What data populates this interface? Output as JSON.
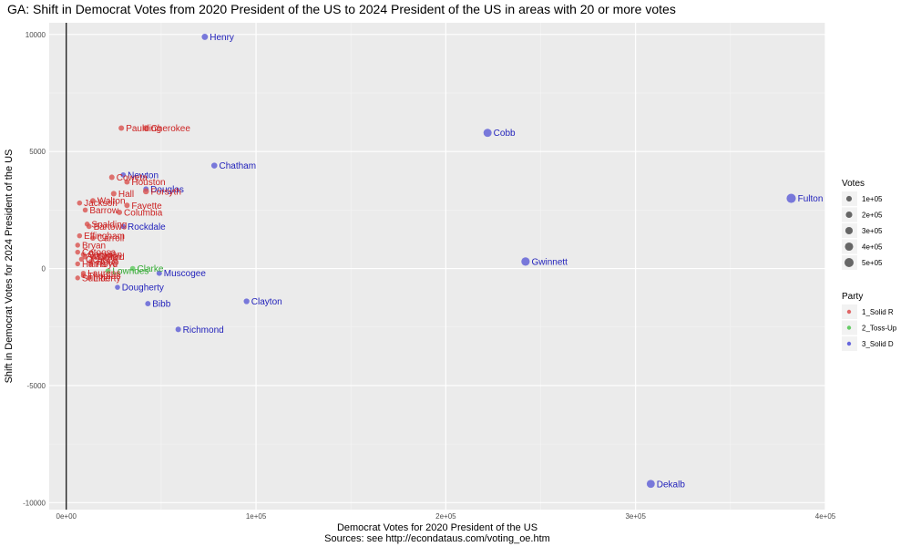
{
  "chart_data": {
    "type": "scatter",
    "title": "GA: Shift in Democrat Votes from 2020 President of the US to 2024 President of the US in areas with 20 or more votes",
    "xlabel": "Democrat Votes for 2020 President of the US",
    "ylabel": "Shift in Democrat Votes for 2024 President of the US",
    "caption": "Sources: see http://econdataus.com/voting_oe.htm",
    "xlim": [
      -9000,
      400000
    ],
    "ylim": [
      -10300,
      10500
    ],
    "x_ticks": [
      0,
      100000,
      200000,
      300000,
      400000
    ],
    "x_tick_labels": [
      "0e+00",
      "1e+05",
      "2e+05",
      "3e+05",
      "4e+05"
    ],
    "y_ticks": [
      -10000,
      -5000,
      0,
      5000,
      10000
    ],
    "y_tick_labels": [
      "-10000",
      "-5000",
      "0",
      "5000",
      "10000"
    ],
    "grid": true,
    "vline_x": 0,
    "legend_placement": "right",
    "legend": {
      "size_title": "Votes",
      "size_items": [
        {
          "label": "1e+05",
          "value": 100000
        },
        {
          "label": "2e+05",
          "value": 200000
        },
        {
          "label": "3e+05",
          "value": 300000
        },
        {
          "label": "4e+05",
          "value": 400000
        },
        {
          "label": "5e+05",
          "value": 500000
        }
      ],
      "party_title": "Party",
      "party_items": [
        {
          "label": "1_Solid R",
          "color": "#e06666"
        },
        {
          "label": "2_Toss-Up",
          "color": "#66cc66"
        },
        {
          "label": "3_Solid D",
          "color": "#6666dd"
        }
      ]
    },
    "colors": {
      "1_Solid R": "#d9534f",
      "2_Toss-Up": "#5cc85c",
      "3_Solid D": "#5b5bd6",
      "label_r": "#cc2222",
      "label_t": "#33aa33",
      "label_d": "#2222bb"
    },
    "series": [
      {
        "name": "3_Solid D",
        "points": [
          {
            "label": "Henry",
            "x": 73000,
            "y": 9900,
            "votes": 170000
          },
          {
            "label": "Cobb",
            "x": 222000,
            "y": 5800,
            "votes": 390000
          },
          {
            "label": "Chatham",
            "x": 78000,
            "y": 4400,
            "votes": 140000
          },
          {
            "label": "Fulton",
            "x": 382000,
            "y": 3000,
            "votes": 520000
          },
          {
            "label": "Newton",
            "x": 30000,
            "y": 4000,
            "votes": 55000
          },
          {
            "label": "Douglas",
            "x": 42000,
            "y": 3400,
            "votes": 70000
          },
          {
            "label": "Rockdale",
            "x": 30000,
            "y": 1800,
            "votes": 45000
          },
          {
            "label": "Gwinnett",
            "x": 242000,
            "y": 300,
            "votes": 420000
          },
          {
            "label": "Muscogee",
            "x": 49000,
            "y": -200,
            "votes": 75000
          },
          {
            "label": "Clayton",
            "x": 95000,
            "y": -1400,
            "votes": 115000
          },
          {
            "label": "Bibb",
            "x": 43000,
            "y": -1500,
            "votes": 70000
          },
          {
            "label": "Richmond",
            "x": 59000,
            "y": -2600,
            "votes": 90000
          },
          {
            "label": "Dekalb",
            "x": 308000,
            "y": -9200,
            "votes": 380000
          },
          {
            "label": "Dougherty",
            "x": 27000,
            "y": -800,
            "votes": 40000
          }
        ]
      },
      {
        "name": "2_Toss-Up",
        "points": [
          {
            "label": "Clarke",
            "x": 35000,
            "y": 0,
            "votes": 55000
          },
          {
            "label": "Lowndes",
            "x": 22000,
            "y": -100,
            "votes": 45000
          }
        ]
      },
      {
        "name": "1_Solid R",
        "points": [
          {
            "label": "Paulding",
            "x": 29000,
            "y": 6000,
            "votes": 90000
          },
          {
            "label": "Cherokee",
            "x": 42000,
            "y": 6000,
            "votes": 150000
          },
          {
            "label": "Coweta",
            "x": 24000,
            "y": 3900,
            "votes": 85000
          },
          {
            "label": "Houston",
            "x": 32000,
            "y": 3700,
            "votes": 75000
          },
          {
            "label": "Forsyth",
            "x": 42000,
            "y": 3300,
            "votes": 150000
          },
          {
            "label": "Hall",
            "x": 25000,
            "y": 3200,
            "votes": 95000
          },
          {
            "label": "Walton",
            "x": 14000,
            "y": 2900,
            "votes": 60000
          },
          {
            "label": "Jackson",
            "x": 7000,
            "y": 2800,
            "votes": 45000
          },
          {
            "label": "Fayette",
            "x": 32000,
            "y": 2700,
            "votes": 75000
          },
          {
            "label": "Barrow",
            "x": 10000,
            "y": 2500,
            "votes": 40000
          },
          {
            "label": "Columbia",
            "x": 28000,
            "y": 2400,
            "votes": 80000
          },
          {
            "label": "Spalding",
            "x": 11000,
            "y": 1900,
            "votes": 33000
          },
          {
            "label": "Bartow",
            "x": 12000,
            "y": 1800,
            "votes": 50000
          },
          {
            "label": "Effingham",
            "x": 7000,
            "y": 1400,
            "votes": 35000
          },
          {
            "label": "Carroll",
            "x": 14000,
            "y": 1300,
            "votes": 60000
          },
          {
            "label": "Bryan",
            "x": 6000,
            "y": 1000,
            "votes": 25000
          },
          {
            "label": "Glynn",
            "x": 14000,
            "y": 500,
            "votes": 45000
          },
          {
            "label": "Troup",
            "x": 13000,
            "y": 300,
            "votes": 35000
          },
          {
            "label": "Catoosa",
            "x": 6000,
            "y": 700,
            "votes": 30000
          },
          {
            "label": "Whitfield",
            "x": 10000,
            "y": 500,
            "votes": 40000
          },
          {
            "label": "Floyd",
            "x": 13000,
            "y": 200,
            "votes": 45000
          },
          {
            "label": "Camden",
            "x": 9000,
            "y": 600,
            "votes": 28000
          },
          {
            "label": "Oconee",
            "x": 8000,
            "y": 400,
            "votes": 25000
          },
          {
            "label": "Harris",
            "x": 6000,
            "y": 200,
            "votes": 22000
          },
          {
            "label": "Laurens",
            "x": 9000,
            "y": -200,
            "votes": 22000
          },
          {
            "label": "Liberty",
            "x": 12000,
            "y": -400,
            "votes": 22000
          },
          {
            "label": "Thomas",
            "x": 9000,
            "y": -300,
            "votes": 22000
          },
          {
            "label": "Sumter",
            "x": 6000,
            "y": -400,
            "votes": 14000
          }
        ]
      }
    ]
  }
}
